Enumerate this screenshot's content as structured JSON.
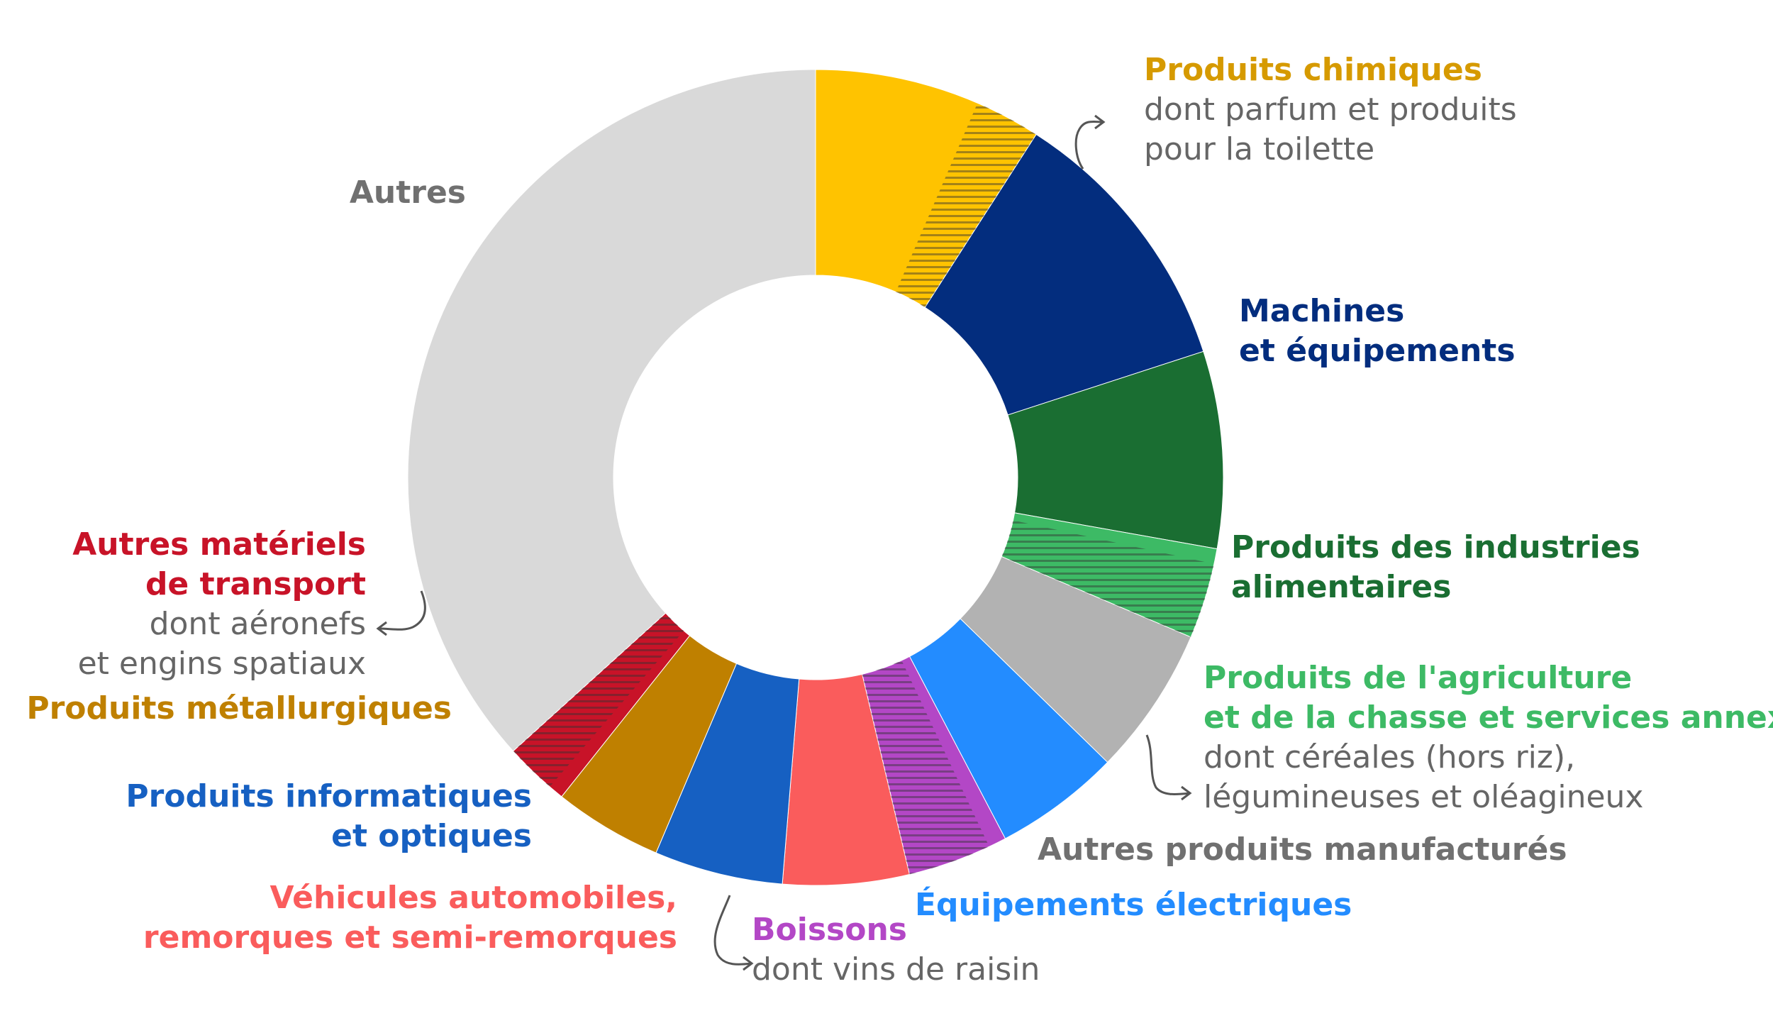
{
  "chart_data": {
    "type": "donut",
    "title": "",
    "legend": "none",
    "slices": [
      {
        "label": "Produits chimiques",
        "value": 9.1,
        "color": "#FFC300",
        "sub_label": "dont parfum et produits pour la toilette",
        "sub_value": 2.6
      },
      {
        "label": "Machines et équipements",
        "value": 10.9,
        "color": "#032D7E"
      },
      {
        "label": "Produits des industries alimentaires",
        "value": 7.8,
        "color": "#1A6E32"
      },
      {
        "label": "Produits de l'agriculture et de la chasse et services annexes",
        "value": 3.6,
        "color": "#3DBA65",
        "sub_label": "dont céréales (hors riz), légumineuses et oléagineux",
        "sub_value": 3.0
      },
      {
        "label": "Autres produits manufacturés",
        "value": 5.9,
        "color": "#B2B2B2"
      },
      {
        "label": "Équipements électriques",
        "value": 5.0,
        "color": "#238CFF"
      },
      {
        "label": "Boissons",
        "value": 4.0,
        "color": "#B347C6",
        "sub_label": "dont vins de raisin",
        "sub_value": 3.3
      },
      {
        "label": "Véhicules automobiles, remorques et semi-remorques",
        "value": 5.0,
        "color": "#FA5C5C"
      },
      {
        "label": "Produits informatiques et optiques",
        "value": 5.1,
        "color": "#1660C2"
      },
      {
        "label": "Produits métallurgiques",
        "value": 4.3,
        "color": "#BF8000"
      },
      {
        "label": "Autres matériels de transport",
        "value": 2.6,
        "color": "#C81328",
        "sub_label": "dont aéronefs et engins spatiaux",
        "sub_value": 2.0
      },
      {
        "label": "Autres",
        "value": 36.7,
        "color": "#D9D9D9"
      }
    ]
  },
  "labels": {
    "chimiques": {
      "main": [
        "Produits chimiques"
      ],
      "sub": [
        "dont parfum et produits",
        "pour la toilette"
      ],
      "main_color": "#D69A00"
    },
    "machines": {
      "main": [
        "Machines",
        "et équipements"
      ],
      "main_color": "#032D7E"
    },
    "alimentaires": {
      "main": [
        "Produits des industries",
        "alimentaires"
      ],
      "main_color": "#1A6E32"
    },
    "agriculture": {
      "main": [
        "Produits de l'agriculture",
        "et de la chasse et services annexes"
      ],
      "sub": [
        "dont céréales (hors riz),",
        "légumineuses et oléagineux"
      ],
      "main_color": "#3DBA65"
    },
    "manufactures": {
      "main": [
        "Autres produits manufacturés"
      ],
      "main_color": "#707070"
    },
    "electriques": {
      "main": [
        "Équipements électriques"
      ],
      "main_color": "#238CFF"
    },
    "boissons": {
      "main": [
        "Boissons"
      ],
      "sub": [
        "dont vins de raisin"
      ],
      "main_color": "#B347C6"
    },
    "vehicules": {
      "main": [
        "Véhicules automobiles,",
        "remorques et semi-remorques"
      ],
      "main_color": "#FA5C5C"
    },
    "informatiques": {
      "main": [
        "Produits informatiques",
        "et optiques"
      ],
      "main_color": "#1660C2"
    },
    "metallurgiques": {
      "main": [
        "Produits métallurgiques"
      ],
      "main_color": "#BF8000"
    },
    "transport": {
      "main": [
        "Autres matériels",
        "de transport"
      ],
      "sub": [
        "dont aéronefs",
        "et engins spatiaux"
      ],
      "main_color": "#C81328"
    },
    "autres": {
      "main": [
        "Autres"
      ],
      "main_color": "#707070"
    }
  }
}
